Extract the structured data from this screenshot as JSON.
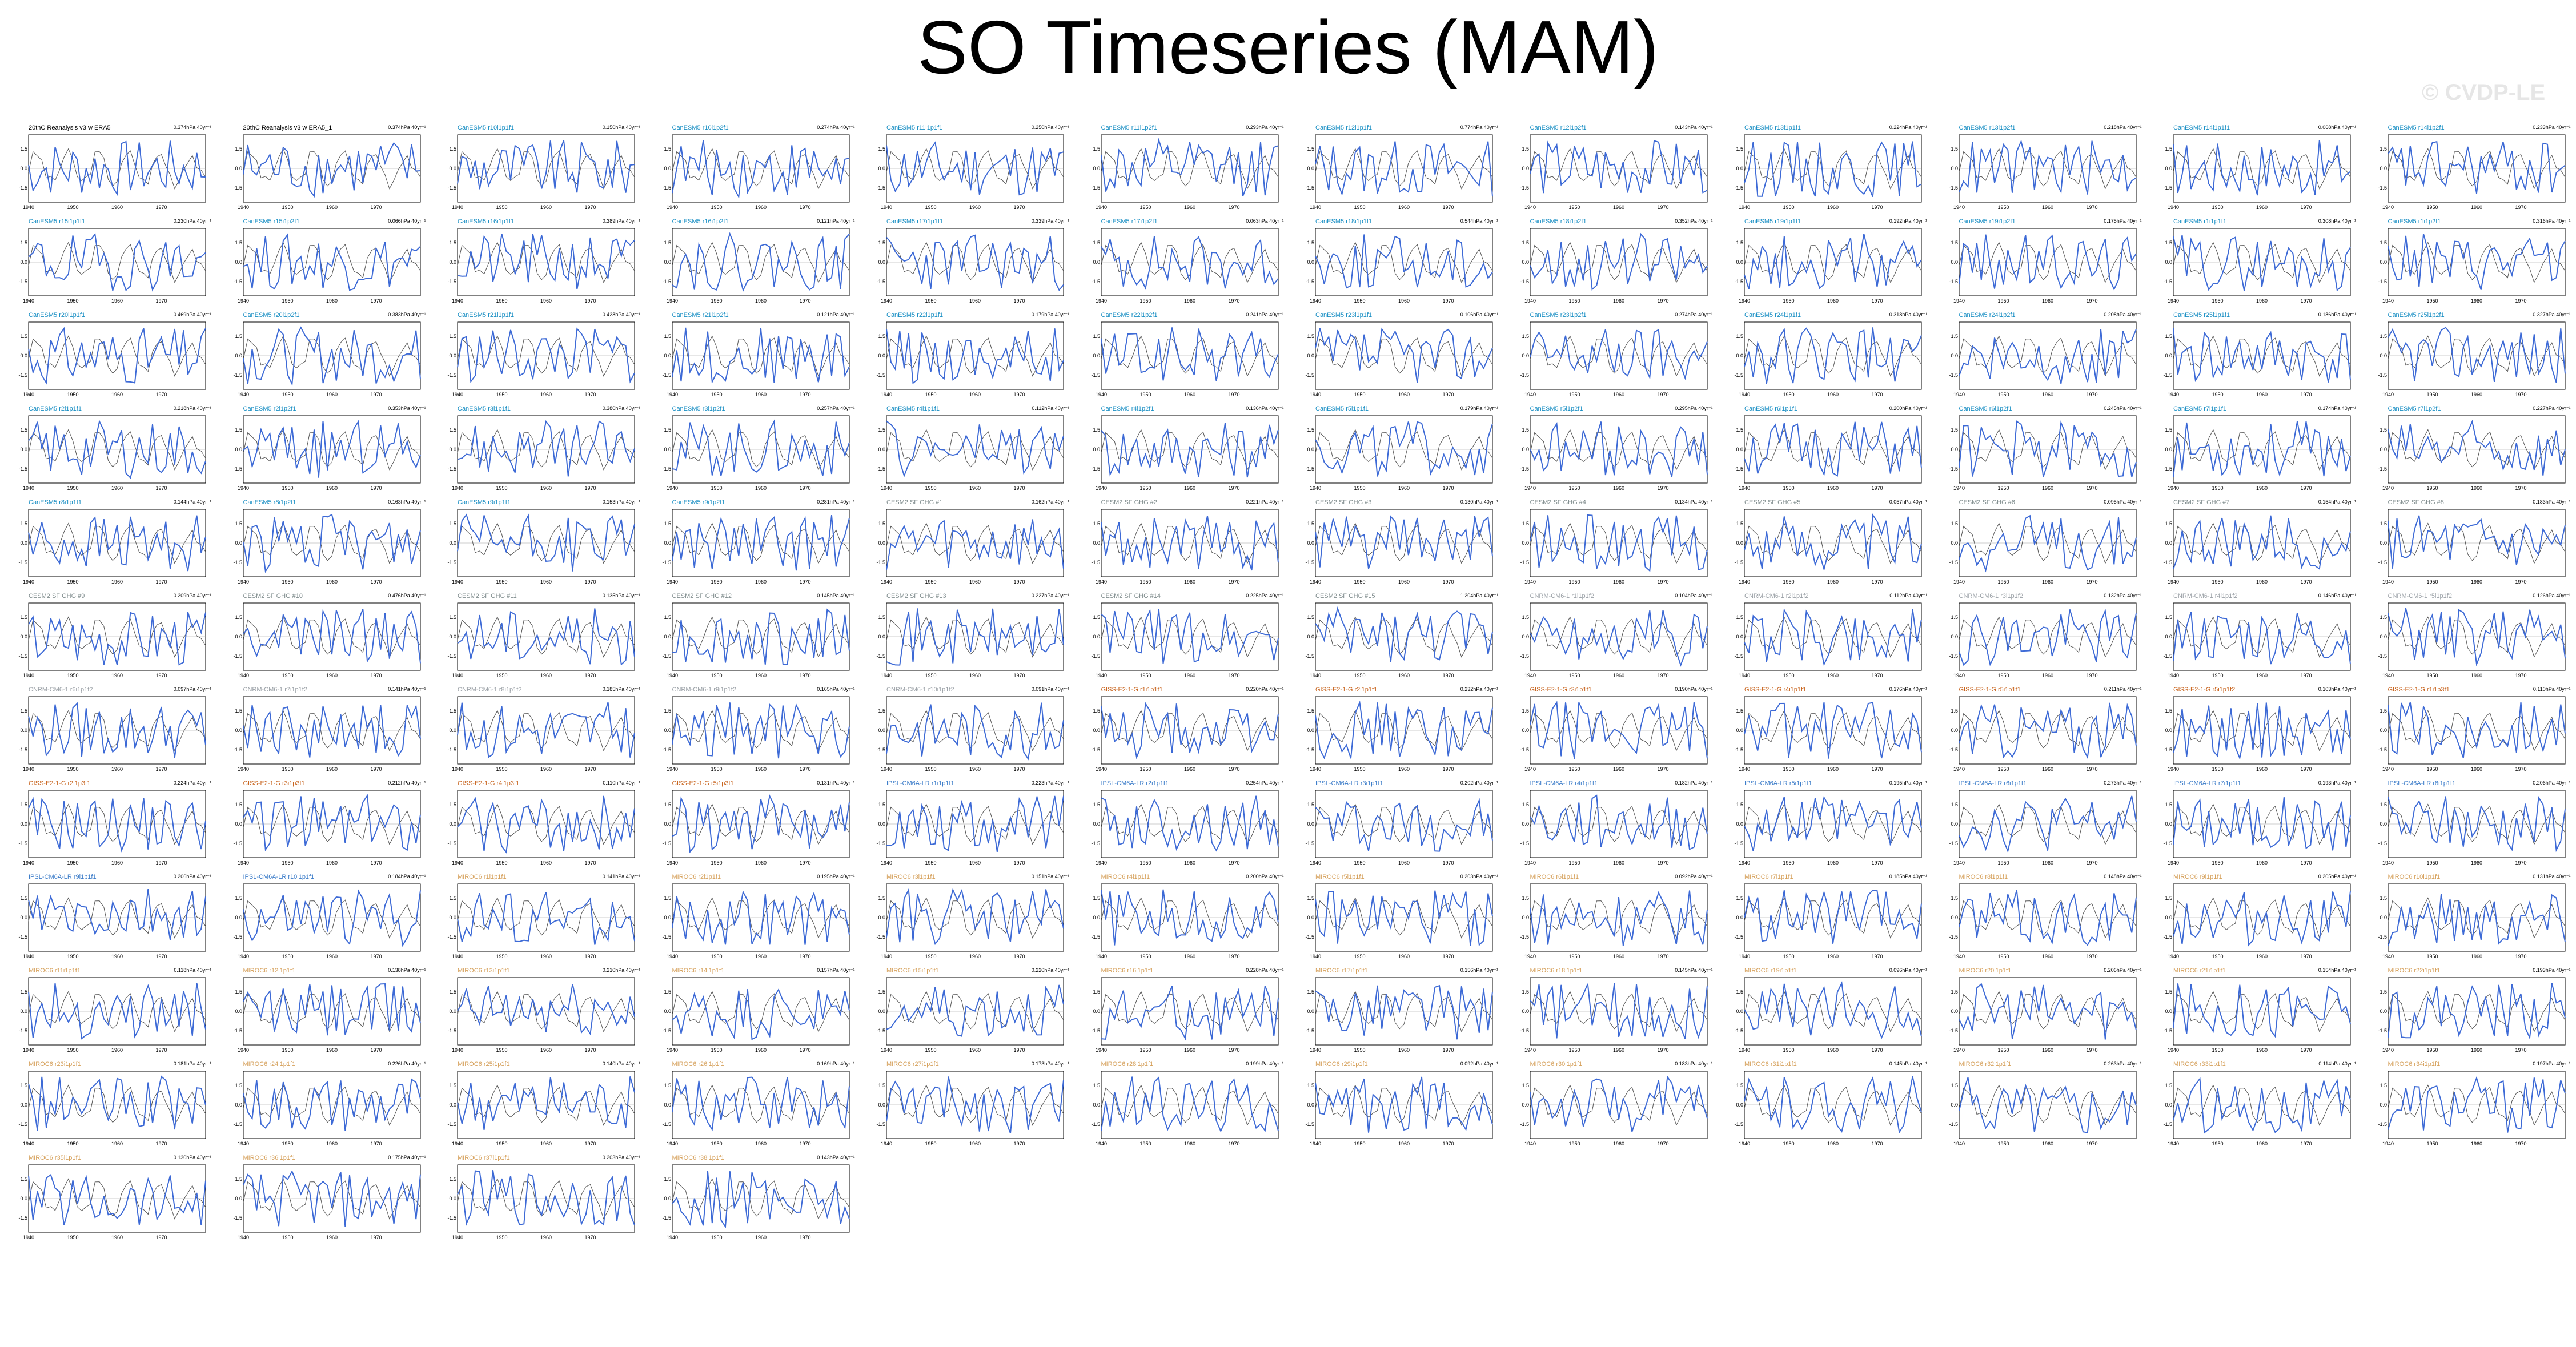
{
  "title": "SO Timeseries (MAM)",
  "watermark": "© CVDP-LE",
  "colors": {
    "obs": "#000000",
    "model": "#3d6ad6",
    "ref": "#555555",
    "cesm1": "#1a8fc4",
    "cesm2": "#7f8c8d",
    "cnrm": "#9aa0a6",
    "giss": "#c8641e",
    "ipsl": "#3b7cc9",
    "miroc": "#d6a15c"
  },
  "chart_data": {
    "type": "line",
    "panel_layout": "grid",
    "panel_count": 136,
    "xlim": [
      1940,
      1980
    ],
    "x_ticks": [
      1940,
      1950,
      1960,
      1970
    ],
    "y_ticks": [
      -1.5,
      0,
      1.5
    ],
    "panels": [
      {
        "name": "20thC Reanalysis v3 w ERA5",
        "trend": "0.374hPa 40yr⁻¹",
        "group": "obs"
      },
      {
        "name": "20thC Reanalysis v3 w ERA5_1",
        "trend": "0.374hPa 40yr⁻¹",
        "group": "obs"
      },
      {
        "name": "CanESM5 r10i1p1f1",
        "trend": "0.150hPa 40yr⁻¹",
        "group": "cesm1"
      },
      {
        "name": "CanESM5 r10i1p2f1",
        "trend": "0.274hPa 40yr⁻¹",
        "group": "cesm1"
      },
      {
        "name": "CanESM5 r11i1p1f1",
        "trend": "0.250hPa 40yr⁻¹",
        "group": "cesm1"
      },
      {
        "name": "CanESM5 r11i1p2f1",
        "trend": "0.293hPa 40yr⁻¹",
        "group": "cesm1"
      },
      {
        "name": "CanESM5 r12i1p1f1",
        "trend": "0.774hPa 40yr⁻¹",
        "group": "cesm1"
      },
      {
        "name": "CanESM5 r12i1p2f1",
        "trend": "0.143hPa 40yr⁻¹",
        "group": "cesm1"
      },
      {
        "name": "CanESM5 r13i1p1f1",
        "trend": "0.224hPa 40yr⁻¹",
        "group": "cesm1"
      },
      {
        "name": "CanESM5 r13i1p2f1",
        "trend": "0.218hPa 40yr⁻¹",
        "group": "cesm1"
      },
      {
        "name": "CanESM5 r14i1p1f1",
        "trend": "0.068hPa 40yr⁻¹",
        "group": "cesm1"
      },
      {
        "name": "CanESM5 r14i1p2f1",
        "trend": "0.233hPa 40yr⁻¹",
        "group": "cesm1"
      },
      {
        "name": "CanESM5 r15i1p1f1",
        "trend": "0.230hPa 40yr⁻¹",
        "group": "cesm1"
      },
      {
        "name": "CanESM5 r15i1p2f1",
        "trend": "0.066hPa 40yr⁻¹",
        "group": "cesm1"
      },
      {
        "name": "CanESM5 r16i1p1f1",
        "trend": "0.389hPa 40yr⁻¹",
        "group": "cesm1"
      },
      {
        "name": "CanESM5 r16i1p2f1",
        "trend": "0.121hPa 40yr⁻¹",
        "group": "cesm1"
      },
      {
        "name": "CanESM5 r17i1p1f1",
        "trend": "0.339hPa 40yr⁻¹",
        "group": "cesm1"
      },
      {
        "name": "CanESM5 r17i1p2f1",
        "trend": "0.063hPa 40yr⁻¹",
        "group": "cesm1"
      },
      {
        "name": "CanESM5 r18i1p1f1",
        "trend": "0.544hPa 40yr⁻¹",
        "group": "cesm1"
      },
      {
        "name": "CanESM5 r18i1p2f1",
        "trend": "0.352hPa 40yr⁻¹",
        "group": "cesm1"
      },
      {
        "name": "CanESM5 r19i1p1f1",
        "trend": "0.192hPa 40yr⁻¹",
        "group": "cesm1"
      },
      {
        "name": "CanESM5 r19i1p2f1",
        "trend": "0.175hPa 40yr⁻¹",
        "group": "cesm1"
      },
      {
        "name": "CanESM5 r1i1p1f1",
        "trend": "0.308hPa 40yr⁻¹",
        "group": "cesm1"
      },
      {
        "name": "CanESM5 r1i1p2f1",
        "trend": "0.316hPa 40yr⁻¹",
        "group": "cesm1"
      },
      {
        "name": "CanESM5 r20i1p1f1",
        "trend": "0.469hPa 40yr⁻¹",
        "group": "cesm1"
      },
      {
        "name": "CanESM5 r20i1p2f1",
        "trend": "0.383hPa 40yr⁻¹",
        "group": "cesm1"
      },
      {
        "name": "CanESM5 r21i1p1f1",
        "trend": "0.428hPa 40yr⁻¹",
        "group": "cesm1"
      },
      {
        "name": "CanESM5 r21i1p2f1",
        "trend": "0.121hPa 40yr⁻¹",
        "group": "cesm1"
      },
      {
        "name": "CanESM5 r22i1p1f1",
        "trend": "0.179hPa 40yr⁻¹",
        "group": "cesm1"
      },
      {
        "name": "CanESM5 r22i1p2f1",
        "trend": "0.241hPa 40yr⁻¹",
        "group": "cesm1"
      },
      {
        "name": "CanESM5 r23i1p1f1",
        "trend": "0.106hPa 40yr⁻¹",
        "group": "cesm1"
      },
      {
        "name": "CanESM5 r23i1p2f1",
        "trend": "0.274hPa 40yr⁻¹",
        "group": "cesm1"
      },
      {
        "name": "CanESM5 r24i1p1f1",
        "trend": "0.318hPa 40yr⁻¹",
        "group": "cesm1"
      },
      {
        "name": "CanESM5 r24i1p2f1",
        "trend": "0.208hPa 40yr⁻¹",
        "group": "cesm1"
      },
      {
        "name": "CanESM5 r25i1p1f1",
        "trend": "0.186hPa 40yr⁻¹",
        "group": "cesm1"
      },
      {
        "name": "CanESM5 r25i1p2f1",
        "trend": "0.327hPa 40yr⁻¹",
        "group": "cesm1"
      },
      {
        "name": "CanESM5 r2i1p1f1",
        "trend": "0.218hPa 40yr⁻¹",
        "group": "cesm1"
      },
      {
        "name": "CanESM5 r2i1p2f1",
        "trend": "0.353hPa 40yr⁻¹",
        "group": "cesm1"
      },
      {
        "name": "CanESM5 r3i1p1f1",
        "trend": "0.380hPa 40yr⁻¹",
        "group": "cesm1"
      },
      {
        "name": "CanESM5 r3i1p2f1",
        "trend": "0.257hPa 40yr⁻¹",
        "group": "cesm1"
      },
      {
        "name": "CanESM5 r4i1p1f1",
        "trend": "0.112hPa 40yr⁻¹",
        "group": "cesm1"
      },
      {
        "name": "CanESM5 r4i1p2f1",
        "trend": "0.136hPa 40yr⁻¹",
        "group": "cesm1"
      },
      {
        "name": "CanESM5 r5i1p1f1",
        "trend": "0.179hPa 40yr⁻¹",
        "group": "cesm1"
      },
      {
        "name": "CanESM5 r5i1p2f1",
        "trend": "0.295hPa 40yr⁻¹",
        "group": "cesm1"
      },
      {
        "name": "CanESM5 r6i1p1f1",
        "trend": "0.200hPa 40yr⁻¹",
        "group": "cesm1"
      },
      {
        "name": "CanESM5 r6i1p2f1",
        "trend": "0.245hPa 40yr⁻¹",
        "group": "cesm1"
      },
      {
        "name": "CanESM5 r7i1p1f1",
        "trend": "0.174hPa 40yr⁻¹",
        "group": "cesm1"
      },
      {
        "name": "CanESM5 r7i1p2f1",
        "trend": "0.227hPa 40yr⁻¹",
        "group": "cesm1"
      },
      {
        "name": "CanESM5 r8i1p1f1",
        "trend": "0.144hPa 40yr⁻¹",
        "group": "cesm1"
      },
      {
        "name": "CanESM5 r8i1p2f1",
        "trend": "0.163hPa 40yr⁻¹",
        "group": "cesm1"
      },
      {
        "name": "CanESM5 r9i1p1f1",
        "trend": "0.153hPa 40yr⁻¹",
        "group": "cesm1"
      },
      {
        "name": "CanESM5 r9i1p2f1",
        "trend": "0.281hPa 40yr⁻¹",
        "group": "cesm1"
      },
      {
        "name": "CESM2 SF GHG #1",
        "trend": "0.162hPa 40yr⁻¹",
        "group": "cesm2"
      },
      {
        "name": "CESM2 SF GHG #2",
        "trend": "0.221hPa 40yr⁻¹",
        "group": "cesm2"
      },
      {
        "name": "CESM2 SF GHG #3",
        "trend": "0.130hPa 40yr⁻¹",
        "group": "cesm2"
      },
      {
        "name": "CESM2 SF GHG #4",
        "trend": "0.134hPa 40yr⁻¹",
        "group": "cesm2"
      },
      {
        "name": "CESM2 SF GHG #5",
        "trend": "0.057hPa 40yr⁻¹",
        "group": "cesm2"
      },
      {
        "name": "CESM2 SF GHG #6",
        "trend": "0.095hPa 40yr⁻¹",
        "group": "cesm2"
      },
      {
        "name": "CESM2 SF GHG #7",
        "trend": "0.154hPa 40yr⁻¹",
        "group": "cesm2"
      },
      {
        "name": "CESM2 SF GHG #8",
        "trend": "0.183hPa 40yr⁻¹",
        "group": "cesm2"
      },
      {
        "name": "CESM2 SF GHG #9",
        "trend": "0.209hPa 40yr⁻¹",
        "group": "cesm2"
      },
      {
        "name": "CESM2 SF GHG #10",
        "trend": "0.476hPa 40yr⁻¹",
        "group": "cesm2"
      },
      {
        "name": "CESM2 SF GHG #11",
        "trend": "0.135hPa 40yr⁻¹",
        "group": "cesm2"
      },
      {
        "name": "CESM2 SF GHG #12",
        "trend": "0.145hPa 40yr⁻¹",
        "group": "cesm2"
      },
      {
        "name": "CESM2 SF GHG #13",
        "trend": "0.227hPa 40yr⁻¹",
        "group": "cesm2"
      },
      {
        "name": "CESM2 SF GHG #14",
        "trend": "0.225hPa 40yr⁻¹",
        "group": "cesm2"
      },
      {
        "name": "CESM2 SF GHG #15",
        "trend": "1.204hPa 40yr⁻¹",
        "group": "cesm2"
      },
      {
        "name": "CNRM-CM6-1 r1i1p1f2",
        "trend": "0.104hPa 40yr⁻¹",
        "group": "cnrm"
      },
      {
        "name": "CNRM-CM6-1 r2i1p1f2",
        "trend": "0.112hPa 40yr⁻¹",
        "group": "cnrm"
      },
      {
        "name": "CNRM-CM6-1 r3i1p1f2",
        "trend": "0.132hPa 40yr⁻¹",
        "group": "cnrm"
      },
      {
        "name": "CNRM-CM6-1 r4i1p1f2",
        "trend": "0.146hPa 40yr⁻¹",
        "group": "cnrm"
      },
      {
        "name": "CNRM-CM6-1 r5i1p1f2",
        "trend": "0.126hPa 40yr⁻¹",
        "group": "cnrm"
      },
      {
        "name": "CNRM-CM6-1 r6i1p1f2",
        "trend": "0.097hPa 40yr⁻¹",
        "group": "cnrm"
      },
      {
        "name": "CNRM-CM6-1 r7i1p1f2",
        "trend": "0.141hPa 40yr⁻¹",
        "group": "cnrm"
      },
      {
        "name": "CNRM-CM6-1 r8i1p1f2",
        "trend": "0.185hPa 40yr⁻¹",
        "group": "cnrm"
      },
      {
        "name": "CNRM-CM6-1 r9i1p1f2",
        "trend": "0.165hPa 40yr⁻¹",
        "group": "cnrm"
      },
      {
        "name": "CNRM-CM6-1 r10i1p1f2",
        "trend": "0.091hPa 40yr⁻¹",
        "group": "cnrm"
      },
      {
        "name": "GISS-E2-1-G r1i1p1f1",
        "trend": "0.220hPa 40yr⁻¹",
        "group": "giss"
      },
      {
        "name": "GISS-E2-1-G r2i1p1f1",
        "trend": "0.232hPa 40yr⁻¹",
        "group": "giss"
      },
      {
        "name": "GISS-E2-1-G r3i1p1f1",
        "trend": "0.190hPa 40yr⁻¹",
        "group": "giss"
      },
      {
        "name": "GISS-E2-1-G r4i1p1f1",
        "trend": "0.176hPa 40yr⁻¹",
        "group": "giss"
      },
      {
        "name": "GISS-E2-1-G r5i1p1f1",
        "trend": "0.211hPa 40yr⁻¹",
        "group": "giss"
      },
      {
        "name": "GISS-E2-1-G r5i1p1f2",
        "trend": "0.103hPa 40yr⁻¹",
        "group": "giss"
      },
      {
        "name": "GISS-E2-1-G r1i1p3f1",
        "trend": "0.110hPa 40yr⁻¹",
        "group": "giss"
      },
      {
        "name": "GISS-E2-1-G r2i1p3f1",
        "trend": "0.224hPa 40yr⁻¹",
        "group": "giss"
      },
      {
        "name": "GISS-E2-1-G r3i1p3f1",
        "trend": "0.212hPa 40yr⁻¹",
        "group": "giss"
      },
      {
        "name": "GISS-E2-1-G r4i1p3f1",
        "trend": "0.110hPa 40yr⁻¹",
        "group": "giss"
      },
      {
        "name": "GISS-E2-1-G r5i1p3f1",
        "trend": "0.131hPa 40yr⁻¹",
        "group": "giss"
      },
      {
        "name": "IPSL-CM6A-LR r1i1p1f1",
        "trend": "0.223hPa 40yr⁻¹",
        "group": "ipsl"
      },
      {
        "name": "IPSL-CM6A-LR r2i1p1f1",
        "trend": "0.254hPa 40yr⁻¹",
        "group": "ipsl"
      },
      {
        "name": "IPSL-CM6A-LR r3i1p1f1",
        "trend": "0.202hPa 40yr⁻¹",
        "group": "ipsl"
      },
      {
        "name": "IPSL-CM6A-LR r4i1p1f1",
        "trend": "0.182hPa 40yr⁻¹",
        "group": "ipsl"
      },
      {
        "name": "IPSL-CM6A-LR r5i1p1f1",
        "trend": "0.195hPa 40yr⁻¹",
        "group": "ipsl"
      },
      {
        "name": "IPSL-CM6A-LR r6i1p1f1",
        "trend": "0.273hPa 40yr⁻¹",
        "group": "ipsl"
      },
      {
        "name": "IPSL-CM6A-LR r7i1p1f1",
        "trend": "0.193hPa 40yr⁻¹",
        "group": "ipsl"
      },
      {
        "name": "IPSL-CM6A-LR r8i1p1f1",
        "trend": "0.206hPa 40yr⁻¹",
        "group": "ipsl"
      },
      {
        "name": "IPSL-CM6A-LR r9i1p1f1",
        "trend": "0.206hPa 40yr⁻¹",
        "group": "ipsl"
      },
      {
        "name": "IPSL-CM6A-LR r10i1p1f1",
        "trend": "0.184hPa 40yr⁻¹",
        "group": "ipsl"
      },
      {
        "name": "MIROC6 r1i1p1f1",
        "trend": "0.141hPa 40yr⁻¹",
        "group": "miroc"
      },
      {
        "name": "MIROC6 r2i1p1f1",
        "trend": "0.195hPa 40yr⁻¹",
        "group": "miroc"
      },
      {
        "name": "MIROC6 r3i1p1f1",
        "trend": "0.151hPa 40yr⁻¹",
        "group": "miroc"
      },
      {
        "name": "MIROC6 r4i1p1f1",
        "trend": "0.200hPa 40yr⁻¹",
        "group": "miroc"
      },
      {
        "name": "MIROC6 r5i1p1f1",
        "trend": "0.203hPa 40yr⁻¹",
        "group": "miroc"
      },
      {
        "name": "MIROC6 r6i1p1f1",
        "trend": "0.092hPa 40yr⁻¹",
        "group": "miroc"
      },
      {
        "name": "MIROC6 r7i1p1f1",
        "trend": "0.185hPa 40yr⁻¹",
        "group": "miroc"
      },
      {
        "name": "MIROC6 r8i1p1f1",
        "trend": "0.148hPa 40yr⁻¹",
        "group": "miroc"
      },
      {
        "name": "MIROC6 r9i1p1f1",
        "trend": "0.205hPa 40yr⁻¹",
        "group": "miroc"
      },
      {
        "name": "MIROC6 r10i1p1f1",
        "trend": "0.131hPa 40yr⁻¹",
        "group": "miroc"
      },
      {
        "name": "MIROC6 r11i1p1f1",
        "trend": "0.118hPa 40yr⁻¹",
        "group": "miroc"
      },
      {
        "name": "MIROC6 r12i1p1f1",
        "trend": "0.138hPa 40yr⁻¹",
        "group": "miroc"
      },
      {
        "name": "MIROC6 r13i1p1f1",
        "trend": "0.210hPa 40yr⁻¹",
        "group": "miroc"
      },
      {
        "name": "MIROC6 r14i1p1f1",
        "trend": "0.157hPa 40yr⁻¹",
        "group": "miroc"
      },
      {
        "name": "MIROC6 r15i1p1f1",
        "trend": "0.220hPa 40yr⁻¹",
        "group": "miroc"
      },
      {
        "name": "MIROC6 r16i1p1f1",
        "trend": "0.228hPa 40yr⁻¹",
        "group": "miroc"
      },
      {
        "name": "MIROC6 r17i1p1f1",
        "trend": "0.156hPa 40yr⁻¹",
        "group": "miroc"
      },
      {
        "name": "MIROC6 r18i1p1f1",
        "trend": "0.145hPa 40yr⁻¹",
        "group": "miroc"
      },
      {
        "name": "MIROC6 r19i1p1f1",
        "trend": "0.096hPa 40yr⁻¹",
        "group": "miroc"
      },
      {
        "name": "MIROC6 r20i1p1f1",
        "trend": "0.206hPa 40yr⁻¹",
        "group": "miroc"
      },
      {
        "name": "MIROC6 r21i1p1f1",
        "trend": "0.154hPa 40yr⁻¹",
        "group": "miroc"
      },
      {
        "name": "MIROC6 r22i1p1f1",
        "trend": "0.193hPa 40yr⁻¹",
        "group": "miroc"
      },
      {
        "name": "MIROC6 r23i1p1f1",
        "trend": "0.181hPa 40yr⁻¹",
        "group": "miroc"
      },
      {
        "name": "MIROC6 r24i1p1f1",
        "trend": "0.226hPa 40yr⁻¹",
        "group": "miroc"
      },
      {
        "name": "MIROC6 r25i1p1f1",
        "trend": "0.140hPa 40yr⁻¹",
        "group": "miroc"
      },
      {
        "name": "MIROC6 r26i1p1f1",
        "trend": "0.169hPa 40yr⁻¹",
        "group": "miroc"
      },
      {
        "name": "MIROC6 r27i1p1f1",
        "trend": "0.173hPa 40yr⁻¹",
        "group": "miroc"
      },
      {
        "name": "MIROC6 r28i1p1f1",
        "trend": "0.199hPa 40yr⁻¹",
        "group": "miroc"
      },
      {
        "name": "MIROC6 r29i1p1f1",
        "trend": "0.092hPa 40yr⁻¹",
        "group": "miroc"
      },
      {
        "name": "MIROC6 r30i1p1f1",
        "trend": "0.183hPa 40yr⁻¹",
        "group": "miroc"
      },
      {
        "name": "MIROC6 r31i1p1f1",
        "trend": "0.145hPa 40yr⁻¹",
        "group": "miroc"
      },
      {
        "name": "MIROC6 r32i1p1f1",
        "trend": "0.263hPa 40yr⁻¹",
        "group": "miroc"
      },
      {
        "name": "MIROC6 r33i1p1f1",
        "trend": "0.114hPa 40yr⁻¹",
        "group": "miroc"
      },
      {
        "name": "MIROC6 r34i1p1f1",
        "trend": "0.197hPa 40yr⁻¹",
        "group": "miroc"
      },
      {
        "name": "MIROC6 r35i1p1f1",
        "trend": "0.130hPa 40yr⁻¹",
        "group": "miroc"
      },
      {
        "name": "MIROC6 r36i1p1f1",
        "trend": "0.175hPa 40yr⁻¹",
        "group": "miroc"
      },
      {
        "name": "MIROC6 r37i1p1f1",
        "trend": "0.203hPa 40yr⁻¹",
        "group": "miroc"
      },
      {
        "name": "MIROC6 r38i1p1f1",
        "trend": "0.143hPa 40yr⁻¹",
        "group": "miroc"
      }
    ]
  }
}
